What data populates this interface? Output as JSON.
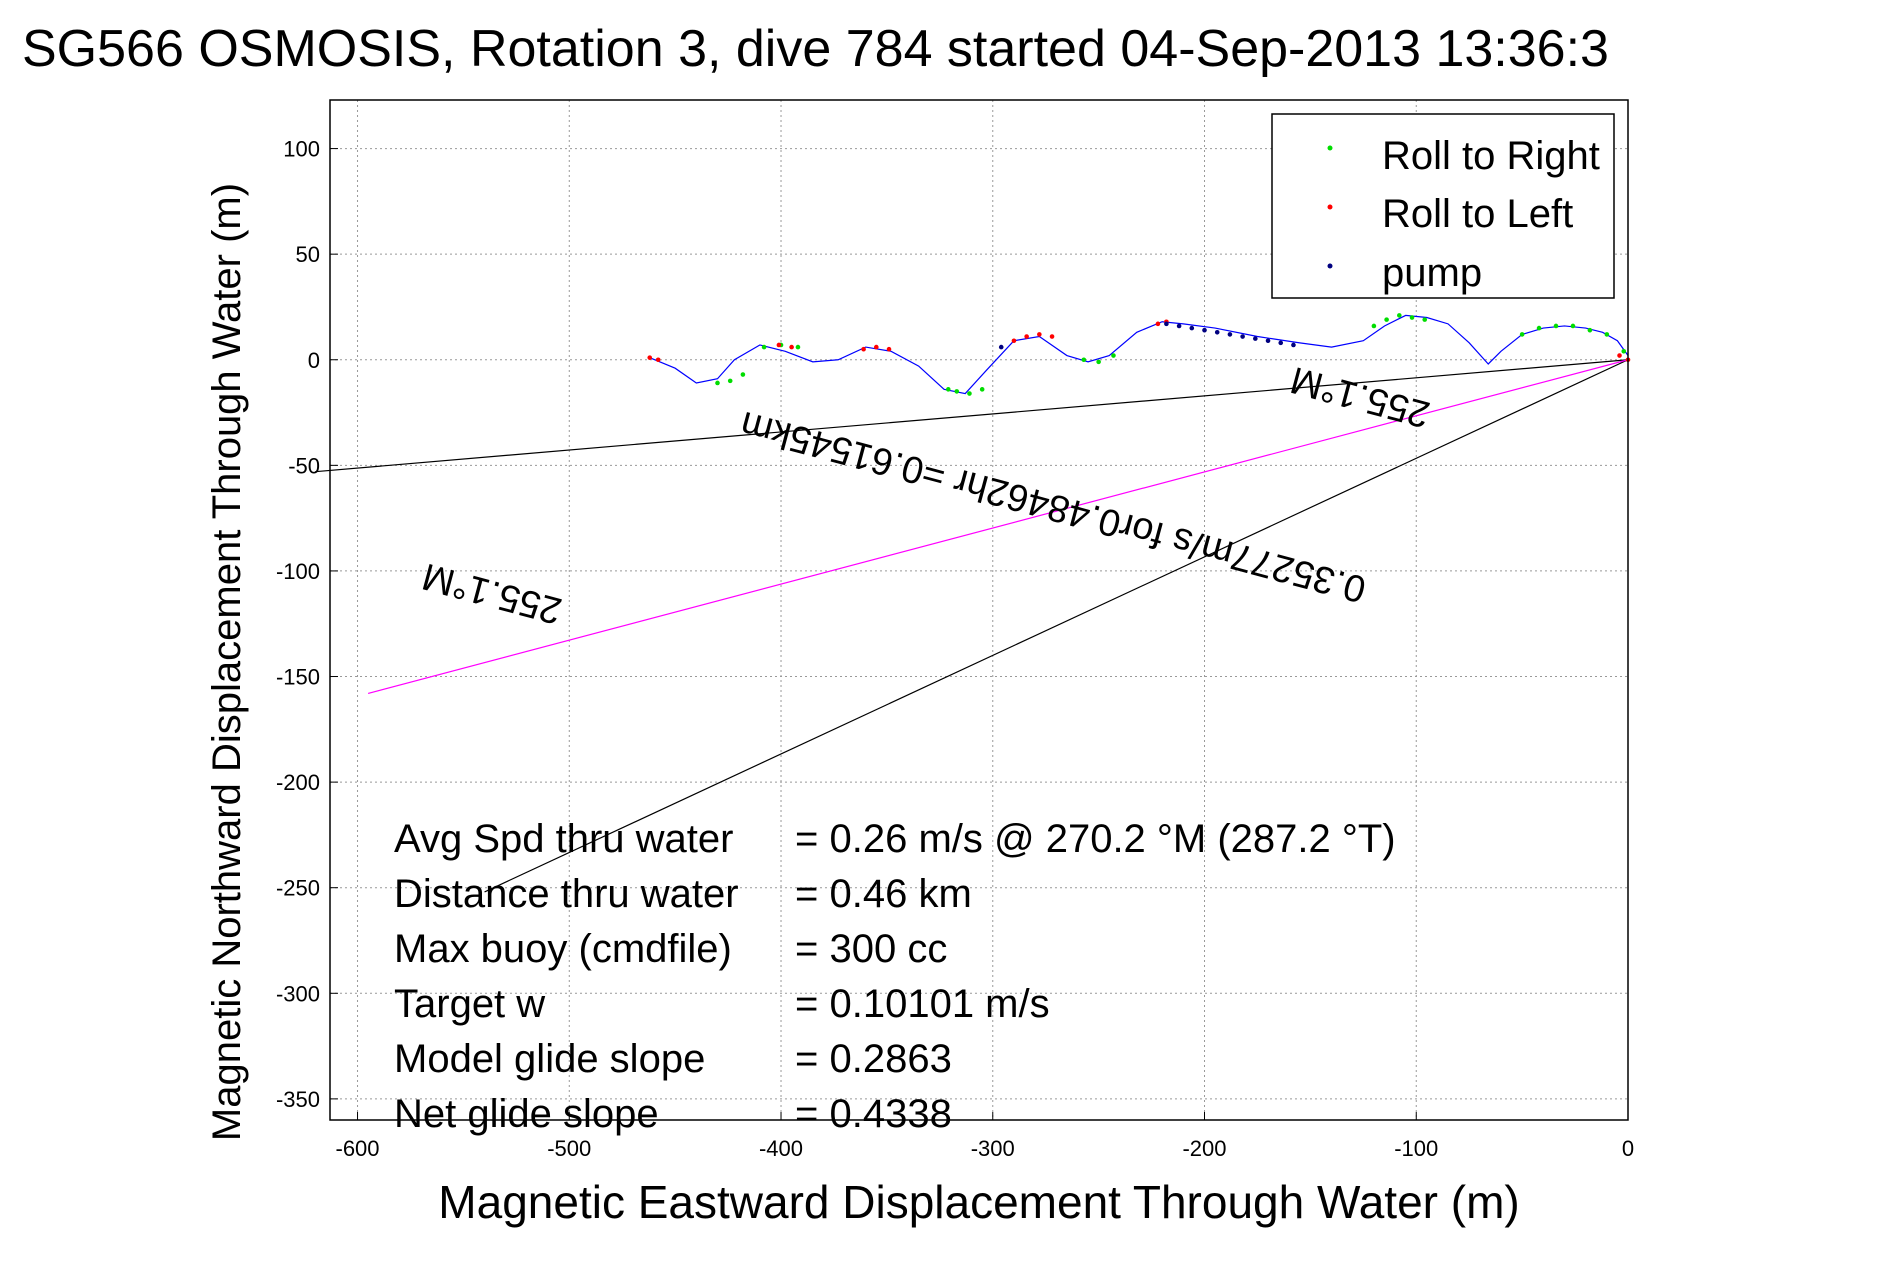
{
  "chart_data": {
    "type": "line",
    "title": "SG566 OSMOSIS, Rotation 3, dive 784 started 04-Sep-2013 13:36:3",
    "xlabel": "Magnetic Eastward Displacement Through Water (m)",
    "ylabel": "Magnetic Northward Displacement Through Water (m)",
    "xlim": [
      -613,
      0
    ],
    "ylim": [
      -360,
      123
    ],
    "xticks": [
      -600,
      -500,
      -400,
      -300,
      -200,
      -100,
      0
    ],
    "yticks": [
      100,
      50,
      0,
      -50,
      -100,
      -150,
      -200,
      -250,
      -300,
      -350
    ],
    "grid": true,
    "legend_position": "top-right",
    "legend": [
      {
        "label": "Roll to Right",
        "color": "#00dd00"
      },
      {
        "label": "Roll to Left",
        "color": "#ff0000"
      },
      {
        "label": "pump",
        "color": "#000080"
      }
    ],
    "track": {
      "color": "#0000ff",
      "x": [
        0,
        -5,
        -12,
        -20,
        -30,
        -40,
        -50,
        -60,
        -66,
        -75,
        -85,
        -95,
        -105,
        -115,
        -125,
        -140,
        -155,
        -175,
        -195,
        -210,
        -220,
        -232,
        -245,
        -255,
        -265,
        -278,
        -290,
        -303,
        -313,
        -323,
        -335,
        -348,
        -360,
        -373,
        -385,
        -398,
        -410,
        -422,
        -430,
        -440,
        -450,
        -462
      ],
      "y": [
        2,
        9,
        13,
        15,
        16,
        15,
        12,
        4,
        -2,
        8,
        17,
        20,
        21,
        16,
        9,
        6,
        8,
        11,
        15,
        17,
        18,
        13,
        2,
        -1,
        2,
        11,
        9,
        -5,
        -16,
        -14,
        -3,
        4,
        6,
        0,
        -1,
        4,
        7,
        0,
        -9,
        -11,
        -4,
        1
      ]
    },
    "roll_right": {
      "x": [
        -2,
        -10,
        -18,
        -26,
        -34,
        -42,
        -50,
        -96,
        -102,
        -108,
        -114,
        -120,
        -243,
        -250,
        -257,
        -305,
        -311,
        -317,
        -321,
        -392,
        -400,
        -408,
        -418,
        -424,
        -430
      ],
      "y": [
        4,
        12,
        14,
        16,
        16,
        15,
        12,
        19,
        20,
        21,
        19,
        16,
        2,
        -1,
        0,
        -14,
        -16,
        -15,
        -14,
        6,
        7,
        6,
        -7,
        -10,
        -11
      ]
    },
    "roll_left": {
      "x": [
        0,
        -4,
        -272,
        -278,
        -284,
        -290,
        -218,
        -222,
        -349,
        -355,
        -361,
        -395,
        -401,
        -462,
        -458
      ],
      "y": [
        0,
        2,
        11,
        12,
        11,
        9,
        18,
        17,
        5,
        6,
        5,
        6,
        7,
        1,
        0
      ]
    },
    "pump": {
      "x": [
        -158,
        -164,
        -170,
        -176,
        -182,
        -188,
        -194,
        -200,
        -206,
        -212,
        -218,
        -296
      ],
      "y": [
        7,
        8,
        9,
        10,
        11,
        12,
        13,
        14,
        15,
        16,
        17,
        6
      ]
    },
    "heading_lines": [
      {
        "color": "#000000",
        "x": [
          0,
          -620
        ],
        "y": [
          0,
          -53
        ]
      },
      {
        "color": "#000000",
        "x": [
          0,
          -540
        ],
        "y": [
          0,
          -252
        ]
      },
      {
        "color": "#ff00ff",
        "x": [
          0,
          -595
        ],
        "y": [
          0,
          -158
        ]
      }
    ],
    "annotations": [
      {
        "text": "255.1°M",
        "x": -125,
        "y": -12,
        "rotate": 195
      },
      {
        "text": "0.35277m/s for0.48462hr =0.61545km",
        "x": -270,
        "y": -64,
        "rotate": 195
      },
      {
        "text": "255.1°M",
        "x": -535,
        "y": -105,
        "rotate": 195
      }
    ],
    "stats": [
      {
        "label": "Avg Spd thru water",
        "value": "=  0.26 m/s @ 270.2 °M (287.2 °T)"
      },
      {
        "label": "Distance thru water",
        "value": "=  0.46 km"
      },
      {
        "label": "Max buoy (cmdfile)",
        "value": "= 300 cc"
      },
      {
        "label": "Target w",
        "value": "= 0.10101 m/s"
      },
      {
        "label": "Model glide slope",
        "value": "= 0.2863"
      },
      {
        "label": "Net glide slope",
        "value": "= 0.4338"
      }
    ]
  }
}
